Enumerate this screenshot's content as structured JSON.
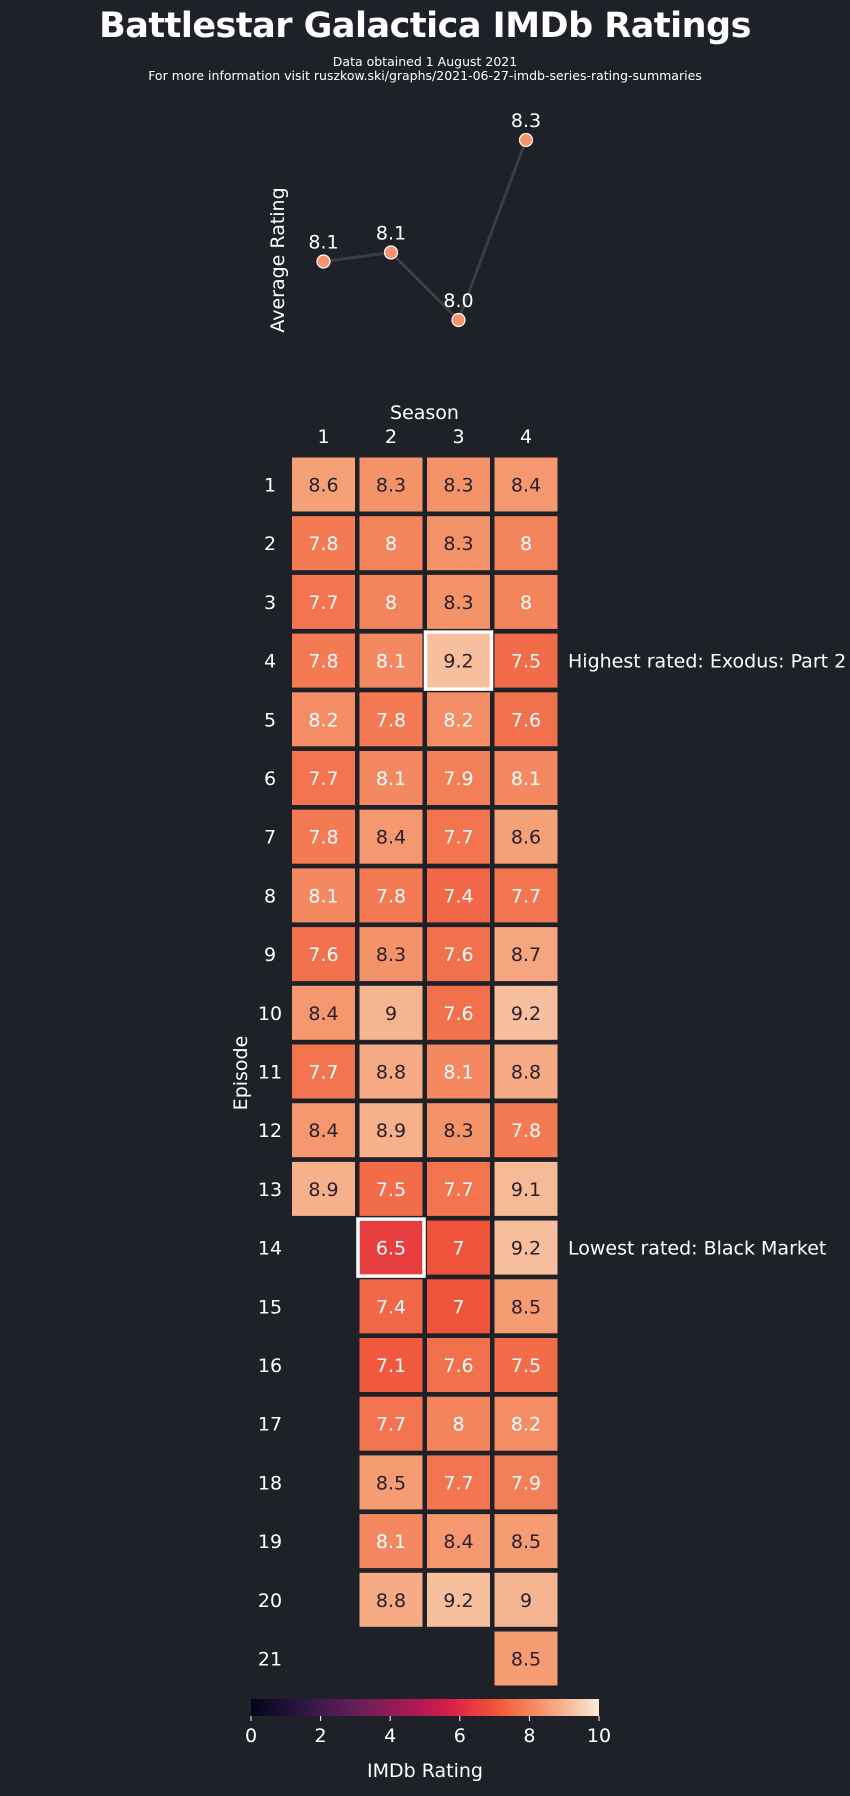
{
  "title": "Battlestar Galactica IMDb Ratings",
  "subtitle_lines": [
    "Data obtained 1 August 2021",
    "For more information visit ruszkow.ski/graphs/2021-06-27-imdb-series-rating-summaries"
  ],
  "colors": {
    "background": "#1f2129",
    "line": "#3c3d44",
    "point": "#f4956e",
    "highlight_border": "#ffffff"
  },
  "chart_data": [
    {
      "type": "line",
      "ylabel": "Average Rating",
      "x": [
        1,
        2,
        3,
        4
      ],
      "values": [
        8.1,
        8.1,
        8.0,
        8.3
      ],
      "value_labels": [
        "8.1",
        "8.1",
        "8.0",
        "8.3"
      ],
      "exact_values": [
        8.08,
        8.1,
        7.95,
        8.35
      ]
    },
    {
      "type": "heatmap",
      "xlabel": "Season",
      "ylabel": "Episode",
      "seasons": [
        "1",
        "2",
        "3",
        "4"
      ],
      "episodes": [
        "1",
        "2",
        "3",
        "4",
        "5",
        "6",
        "7",
        "8",
        "9",
        "10",
        "11",
        "12",
        "13",
        "14",
        "15",
        "16",
        "17",
        "18",
        "19",
        "20",
        "21"
      ],
      "ratings": [
        [
          8.6,
          7.8,
          7.7,
          7.8,
          8.2,
          7.7,
          7.8,
          8.1,
          7.6,
          8.4,
          7.7,
          8.4,
          8.9
        ],
        [
          8.3,
          8,
          8,
          8.1,
          7.8,
          8.1,
          8.4,
          7.8,
          8.3,
          9,
          8.8,
          8.9,
          7.5,
          6.5,
          7.4,
          7.1,
          7.7,
          8.5,
          8.1,
          8.8
        ],
        [
          8.3,
          8.3,
          8.3,
          9.2,
          8.2,
          7.9,
          7.7,
          7.4,
          7.6,
          7.6,
          8.1,
          8.3,
          7.7,
          7,
          7,
          7.6,
          8,
          7.7,
          8.4,
          9.2
        ],
        [
          8.4,
          8,
          8,
          7.5,
          7.6,
          8.1,
          8.6,
          7.7,
          8.7,
          9.2,
          8.8,
          7.8,
          9.1,
          9.2,
          8.5,
          7.5,
          8.2,
          7.9,
          8.5,
          9,
          8.5
        ]
      ],
      "highlights": [
        {
          "season": 3,
          "episode": 4,
          "label": "Highest rated: Exodus: Part 2"
        },
        {
          "season": 2,
          "episode": 14,
          "label": "Lowest rated: Black Market"
        }
      ],
      "colorbar": {
        "label": "IMDb Rating",
        "range": [
          0,
          10
        ],
        "ticks": [
          "0",
          "2",
          "4",
          "6",
          "8",
          "10"
        ],
        "colormap": "rocket"
      }
    }
  ]
}
